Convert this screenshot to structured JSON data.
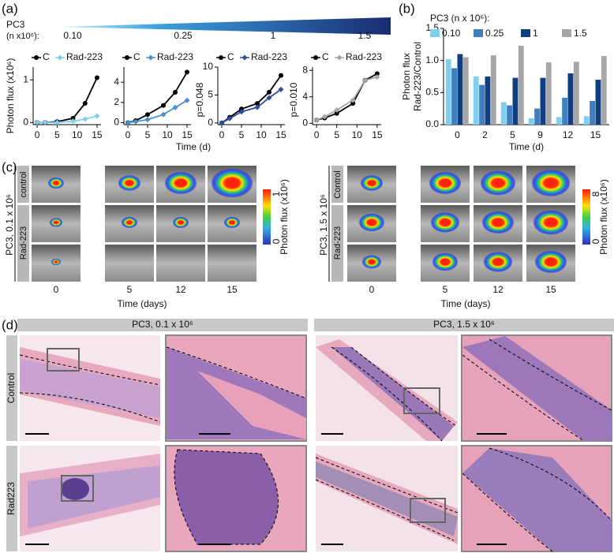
{
  "chart_data": [
    {
      "type": "line",
      "ylabel": "Photon flux (x10⁶)",
      "annotation": null,
      "xlim": [
        -1,
        16
      ],
      "xticks": [
        0,
        5,
        10,
        15
      ],
      "ylim": [
        -0.05,
        1.3
      ],
      "yticks": [
        0,
        1
      ],
      "series": [
        {
          "name": "C",
          "color": "#000000",
          "x": [
            0,
            2,
            5,
            9,
            12,
            15
          ],
          "values": [
            0,
            0,
            0.02,
            0.1,
            0.45,
            1.05
          ]
        },
        {
          "name": "Rad-223",
          "color": "#7fd0f0",
          "x": [
            0,
            2,
            5,
            9,
            12,
            15
          ],
          "values": [
            0,
            0,
            0,
            0.03,
            0.08,
            0.15
          ]
        }
      ]
    },
    {
      "type": "line",
      "annotation": "p=0.048",
      "xlim": [
        -1,
        16
      ],
      "xticks": [
        0,
        5,
        10,
        15
      ],
      "ylim": [
        -0.2,
        5.5
      ],
      "yticks": [
        0,
        2,
        4
      ],
      "series": [
        {
          "name": "C",
          "color": "#000000",
          "x": [
            0,
            2,
            5,
            9,
            12,
            15
          ],
          "values": [
            0,
            0.2,
            0.8,
            1.7,
            3.0,
            5.0
          ]
        },
        {
          "name": "Rad-223",
          "color": "#4a8fd0",
          "x": [
            0,
            2,
            5,
            9,
            12,
            15
          ],
          "values": [
            0,
            0.1,
            0.3,
            0.8,
            1.5,
            2.2
          ]
        }
      ]
    },
    {
      "type": "line",
      "annotation": "p=0.010",
      "xlim": [
        -1,
        16
      ],
      "xticks": [
        0,
        5,
        10,
        15
      ],
      "ylim": [
        -0.3,
        10
      ],
      "yticks": [
        0,
        5,
        10
      ],
      "series": [
        {
          "name": "C",
          "color": "#000000",
          "x": [
            0,
            2,
            5,
            9,
            12,
            15
          ],
          "values": [
            0,
            1.0,
            2.5,
            3.5,
            5.5,
            8.5
          ]
        },
        {
          "name": "Rad-223",
          "color": "#2d4f9e",
          "x": [
            0,
            2,
            5,
            9,
            12,
            15
          ],
          "values": [
            0,
            0.8,
            2.0,
            2.8,
            4.5,
            6.0
          ]
        }
      ]
    },
    {
      "type": "line",
      "annotation": null,
      "xlim": [
        -1,
        16
      ],
      "xticks": [
        0,
        5,
        10,
        15
      ],
      "ylim": [
        -0.2,
        8.5
      ],
      "yticks": [
        0,
        4,
        8
      ],
      "series": [
        {
          "name": "C",
          "color": "#000000",
          "x": [
            0,
            2,
            5,
            9,
            12,
            15
          ],
          "values": [
            0.5,
            0.8,
            1.5,
            3.0,
            6.5,
            7.5
          ]
        },
        {
          "name": "Rad-223",
          "color": "#a6a6a6",
          "x": [
            0,
            2,
            5,
            9,
            12,
            15
          ],
          "values": [
            0.5,
            1.0,
            2.0,
            3.5,
            6.5,
            7.0
          ]
        }
      ]
    },
    {
      "type": "bar",
      "legend_title": "PC3 (n x 10⁶):",
      "ylabel": [
        "Photon flux",
        "Rad-223/Control"
      ],
      "xlabel": "Time (d)",
      "categories": [
        "0",
        "2",
        "5",
        "9",
        "12",
        "15"
      ],
      "ylim": [
        0,
        1.5
      ],
      "yticks": [
        {
          "value": 0,
          "label": "0.0"
        },
        0.5,
        {
          "value": 1,
          "label": "1.0"
        },
        1.5
      ],
      "series": [
        {
          "name": "0.10",
          "color": "#7fd0f0",
          "values": [
            1.02,
            0.75,
            0.35,
            0.1,
            0.12,
            0.13
          ]
        },
        {
          "name": "0.25",
          "color": "#3f7fc0",
          "values": [
            0.88,
            0.62,
            0.3,
            0.25,
            0.42,
            0.37
          ]
        },
        {
          "name": "1",
          "color": "#0f3f80",
          "values": [
            1.1,
            0.75,
            0.73,
            0.73,
            0.8,
            0.7
          ]
        },
        {
          "name": "1.5",
          "color": "#a6a6a6",
          "values": [
            1.05,
            1.08,
            1.23,
            0.97,
            0.98,
            1.07
          ]
        }
      ]
    }
  ],
  "figure": {
    "panel_labels": [
      "(a)",
      "(b)",
      "(c)",
      "(d)"
    ],
    "gradient": {
      "title": "PC3",
      "unit": "(n x10⁶):",
      "levels": [
        "0.10",
        "0.25",
        "1",
        "1.5"
      ]
    },
    "panel_a_xlabel": "Time (d)",
    "panel_c": {
      "left": {
        "title": "PC3, 0.1 x 10⁶",
        "rows": [
          "control",
          "Rad-223"
        ],
        "times": [
          "0",
          "5",
          "12",
          "15"
        ],
        "xlabel": "Time (days)",
        "colorbar": {
          "label": "Photon flux (x10⁶)",
          "max": 1,
          "min": 0
        }
      },
      "right": {
        "title": "PC3, 1.5 x 10⁶",
        "rows": [
          "Control",
          "Rad-223"
        ],
        "times": [
          "0",
          "5",
          "12",
          "15"
        ],
        "xlabel": "Time (days)",
        "colorbar": {
          "label": "Photon flux (x10⁶)",
          "max": 8,
          "min": 0
        }
      }
    },
    "panel_d": {
      "columns": [
        "PC3, 0.1 x 10⁶",
        "PC3, 1.5 x 10⁶"
      ],
      "rows": [
        "Control",
        "Rad223"
      ]
    }
  }
}
